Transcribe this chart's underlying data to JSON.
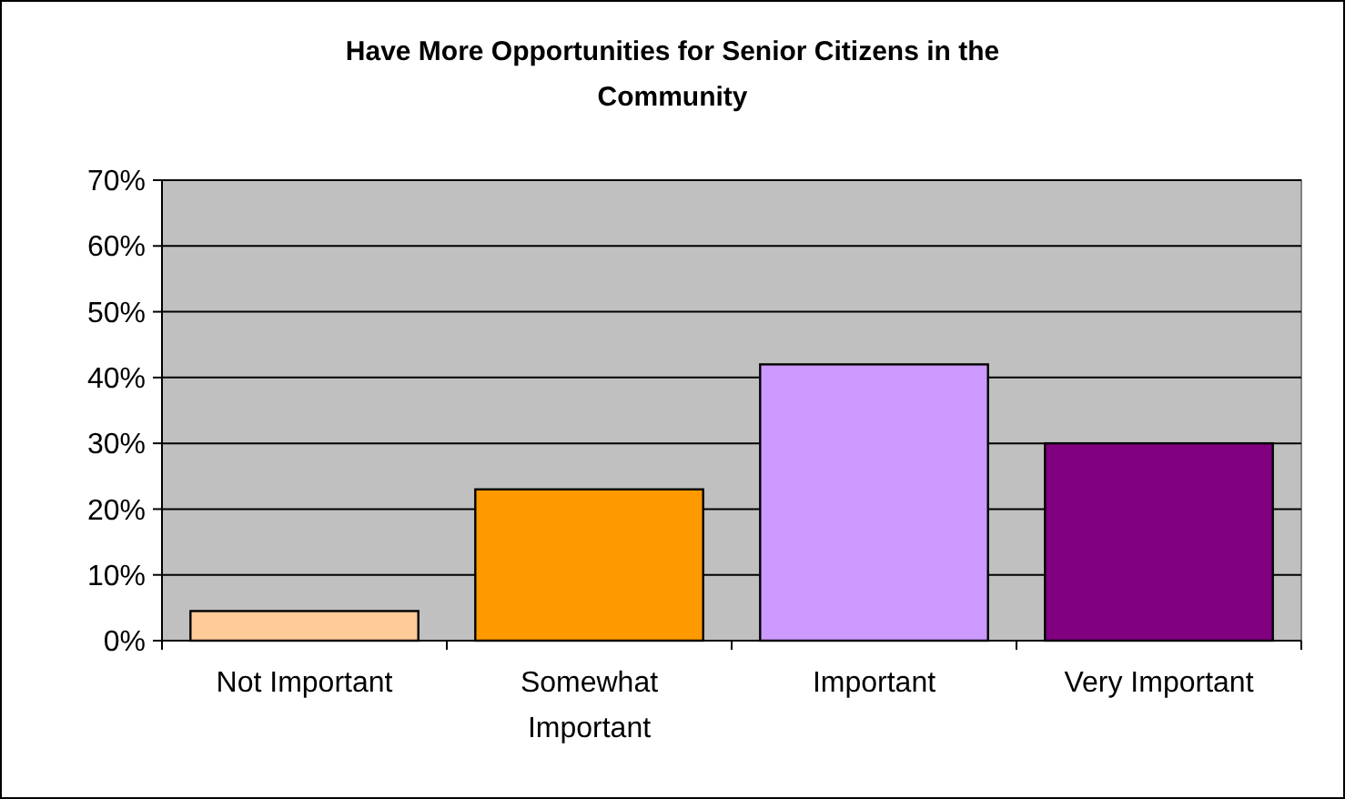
{
  "chart_data": {
    "type": "bar",
    "title": "Have More Opportunities for Senior Citizens in the Community",
    "categories": [
      "Not Important",
      "Somewhat Important",
      "Important",
      "Very Important"
    ],
    "values": [
      4.5,
      23,
      42,
      30
    ],
    "colors": [
      "#ffcc99",
      "#ff9900",
      "#cc99ff",
      "#800080"
    ],
    "ylim": [
      0,
      70
    ],
    "yticks": [
      {
        "value": 0,
        "label": "0%"
      },
      {
        "value": 10,
        "label": "10%"
      },
      {
        "value": 20,
        "label": "20%"
      },
      {
        "value": 30,
        "label": "30%"
      },
      {
        "value": 40,
        "label": "40%"
      },
      {
        "value": 50,
        "label": "50%"
      },
      {
        "value": 60,
        "label": "60%"
      },
      {
        "value": 70,
        "label": "70%"
      }
    ],
    "grid": "y"
  }
}
